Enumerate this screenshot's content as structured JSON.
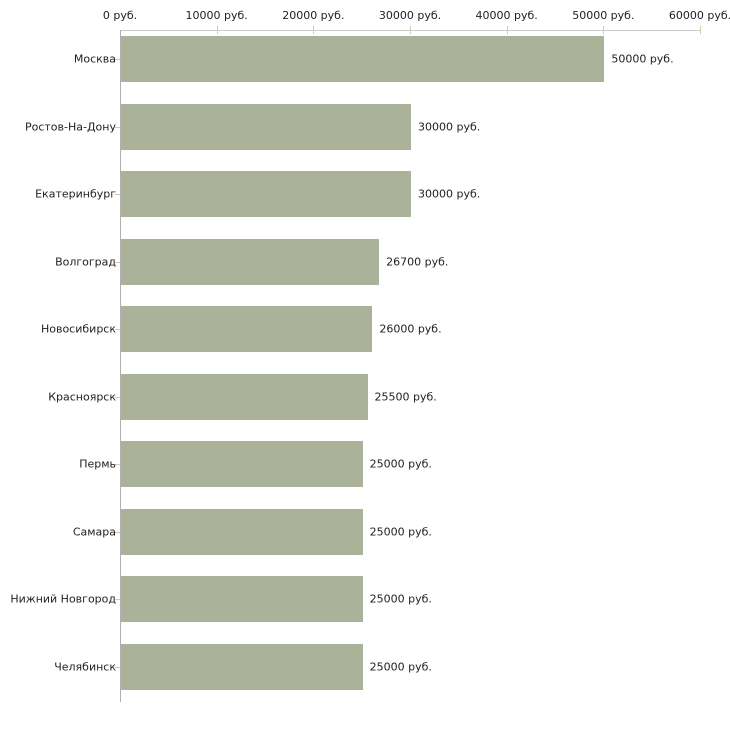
{
  "chart_data": {
    "type": "bar",
    "orientation": "horizontal",
    "title": "",
    "xlabel": "",
    "ylabel": "",
    "grid": false,
    "legend": false,
    "categories": [
      "Москва",
      "Ростов-На-Дону",
      "Екатеринбург",
      "Волгоград",
      "Новосибирск",
      "Красноярск",
      "Пермь",
      "Самара",
      "Нижний Новгород",
      "Челябинск"
    ],
    "values": [
      50000,
      30000,
      30000,
      26700,
      26000,
      25500,
      25000,
      25000,
      25000,
      25000
    ],
    "value_labels": [
      "50000 руб.",
      "30000 руб.",
      "30000 руб.",
      "26700 руб.",
      "26000 руб.",
      "25500 руб.",
      "25000 руб.",
      "25000 руб.",
      "25000 руб.",
      "25000 руб."
    ],
    "x_axis": {
      "position": "top",
      "min": 0,
      "max": 60000,
      "ticks": [
        0,
        10000,
        20000,
        30000,
        40000,
        50000,
        60000
      ],
      "tick_labels": [
        "0 руб.",
        "10000 руб.",
        "20000 руб.",
        "30000 руб.",
        "40000 руб.",
        "50000 руб.",
        "60000 руб."
      ]
    }
  },
  "colors": {
    "bar_fill": "#aab299",
    "axis_line": "#cccccc",
    "category_axis_line": "#b0b0b0",
    "tick_mark": "#cfccab",
    "text": "#222222",
    "background": "#ffffff"
  }
}
